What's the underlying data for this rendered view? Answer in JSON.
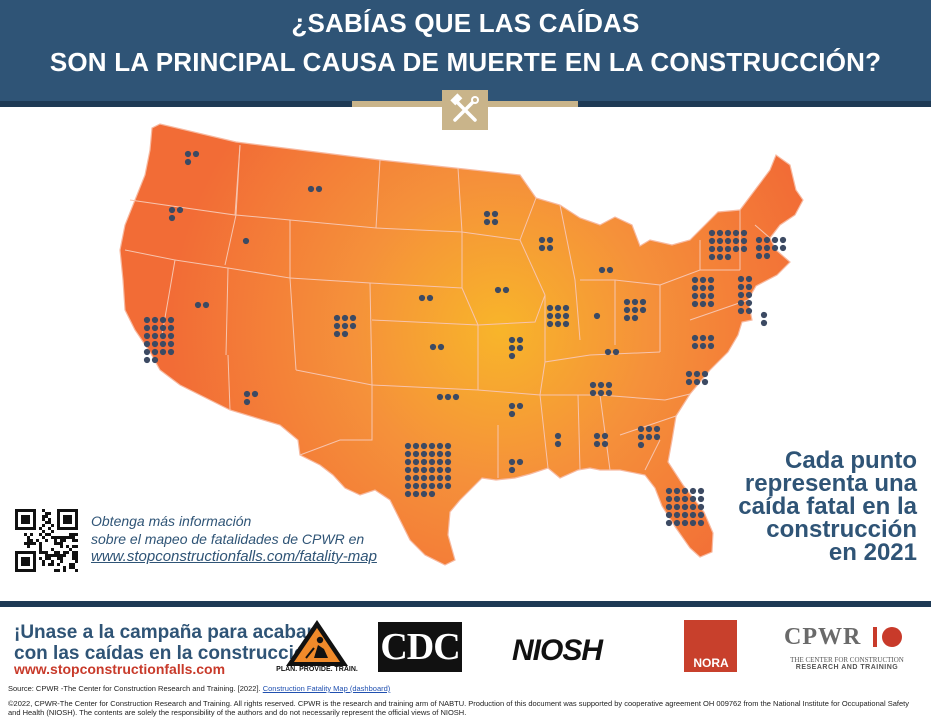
{
  "header": {
    "line1": "¿SABÍAS QUE LAS CAÍDAS",
    "line2": "SON LA PRINCIPAL CAUSA DE MUERTE EN LA CONSTRUCCIÓN?",
    "badge_icon": "crossed-tools-icon"
  },
  "map": {
    "dot_color": "#3c4a63",
    "state_color": "#f47a3a",
    "glow_color": "#f8b52a"
  },
  "info": {
    "line1": "Obtenga más información",
    "line2": "sobre el mapeo de fatalidades de CPWR en",
    "link": "www.stopconstructionfalls.com/fatality-map"
  },
  "legend": {
    "line1": "Cada punto",
    "line2": "representa una",
    "line3": "caída fatal en la",
    "line4": "construcción",
    "line5": "en 2021"
  },
  "campaign": {
    "line1": "¡Unase a la campaña para acabar",
    "line2": "con las caídas en la construcción!",
    "url": "www.stopconstructionfalls.com"
  },
  "logos": {
    "ppt_text": "PLAN. PROVIDE. TRAIN.",
    "cdc": "CDC",
    "niosh": "NIOSH",
    "nora": "NORA",
    "cpwr": "CPWR",
    "cpwr_sub1": "THE CENTER FOR CONSTRUCTION",
    "cpwr_sub2": "RESEARCH AND TRAINING"
  },
  "footer": {
    "source_prefix": "Source: CPWR -The Center for Construction Research and Training. [2022].",
    "source_link": "Construction Fatality Map (dashboard)",
    "copyright": "©2022, CPWR-The Center for Construction Research and Training. All rights reserved. CPWR is the research and training arm of NABTU. Production of this document was supported by cooperative agreement OH 009762 from the National Institute for Occupational Safety and Health (NIOSH). The contents are solely the responsibility of the authors and do not necessarily represent the official views of NIOSH."
  }
}
